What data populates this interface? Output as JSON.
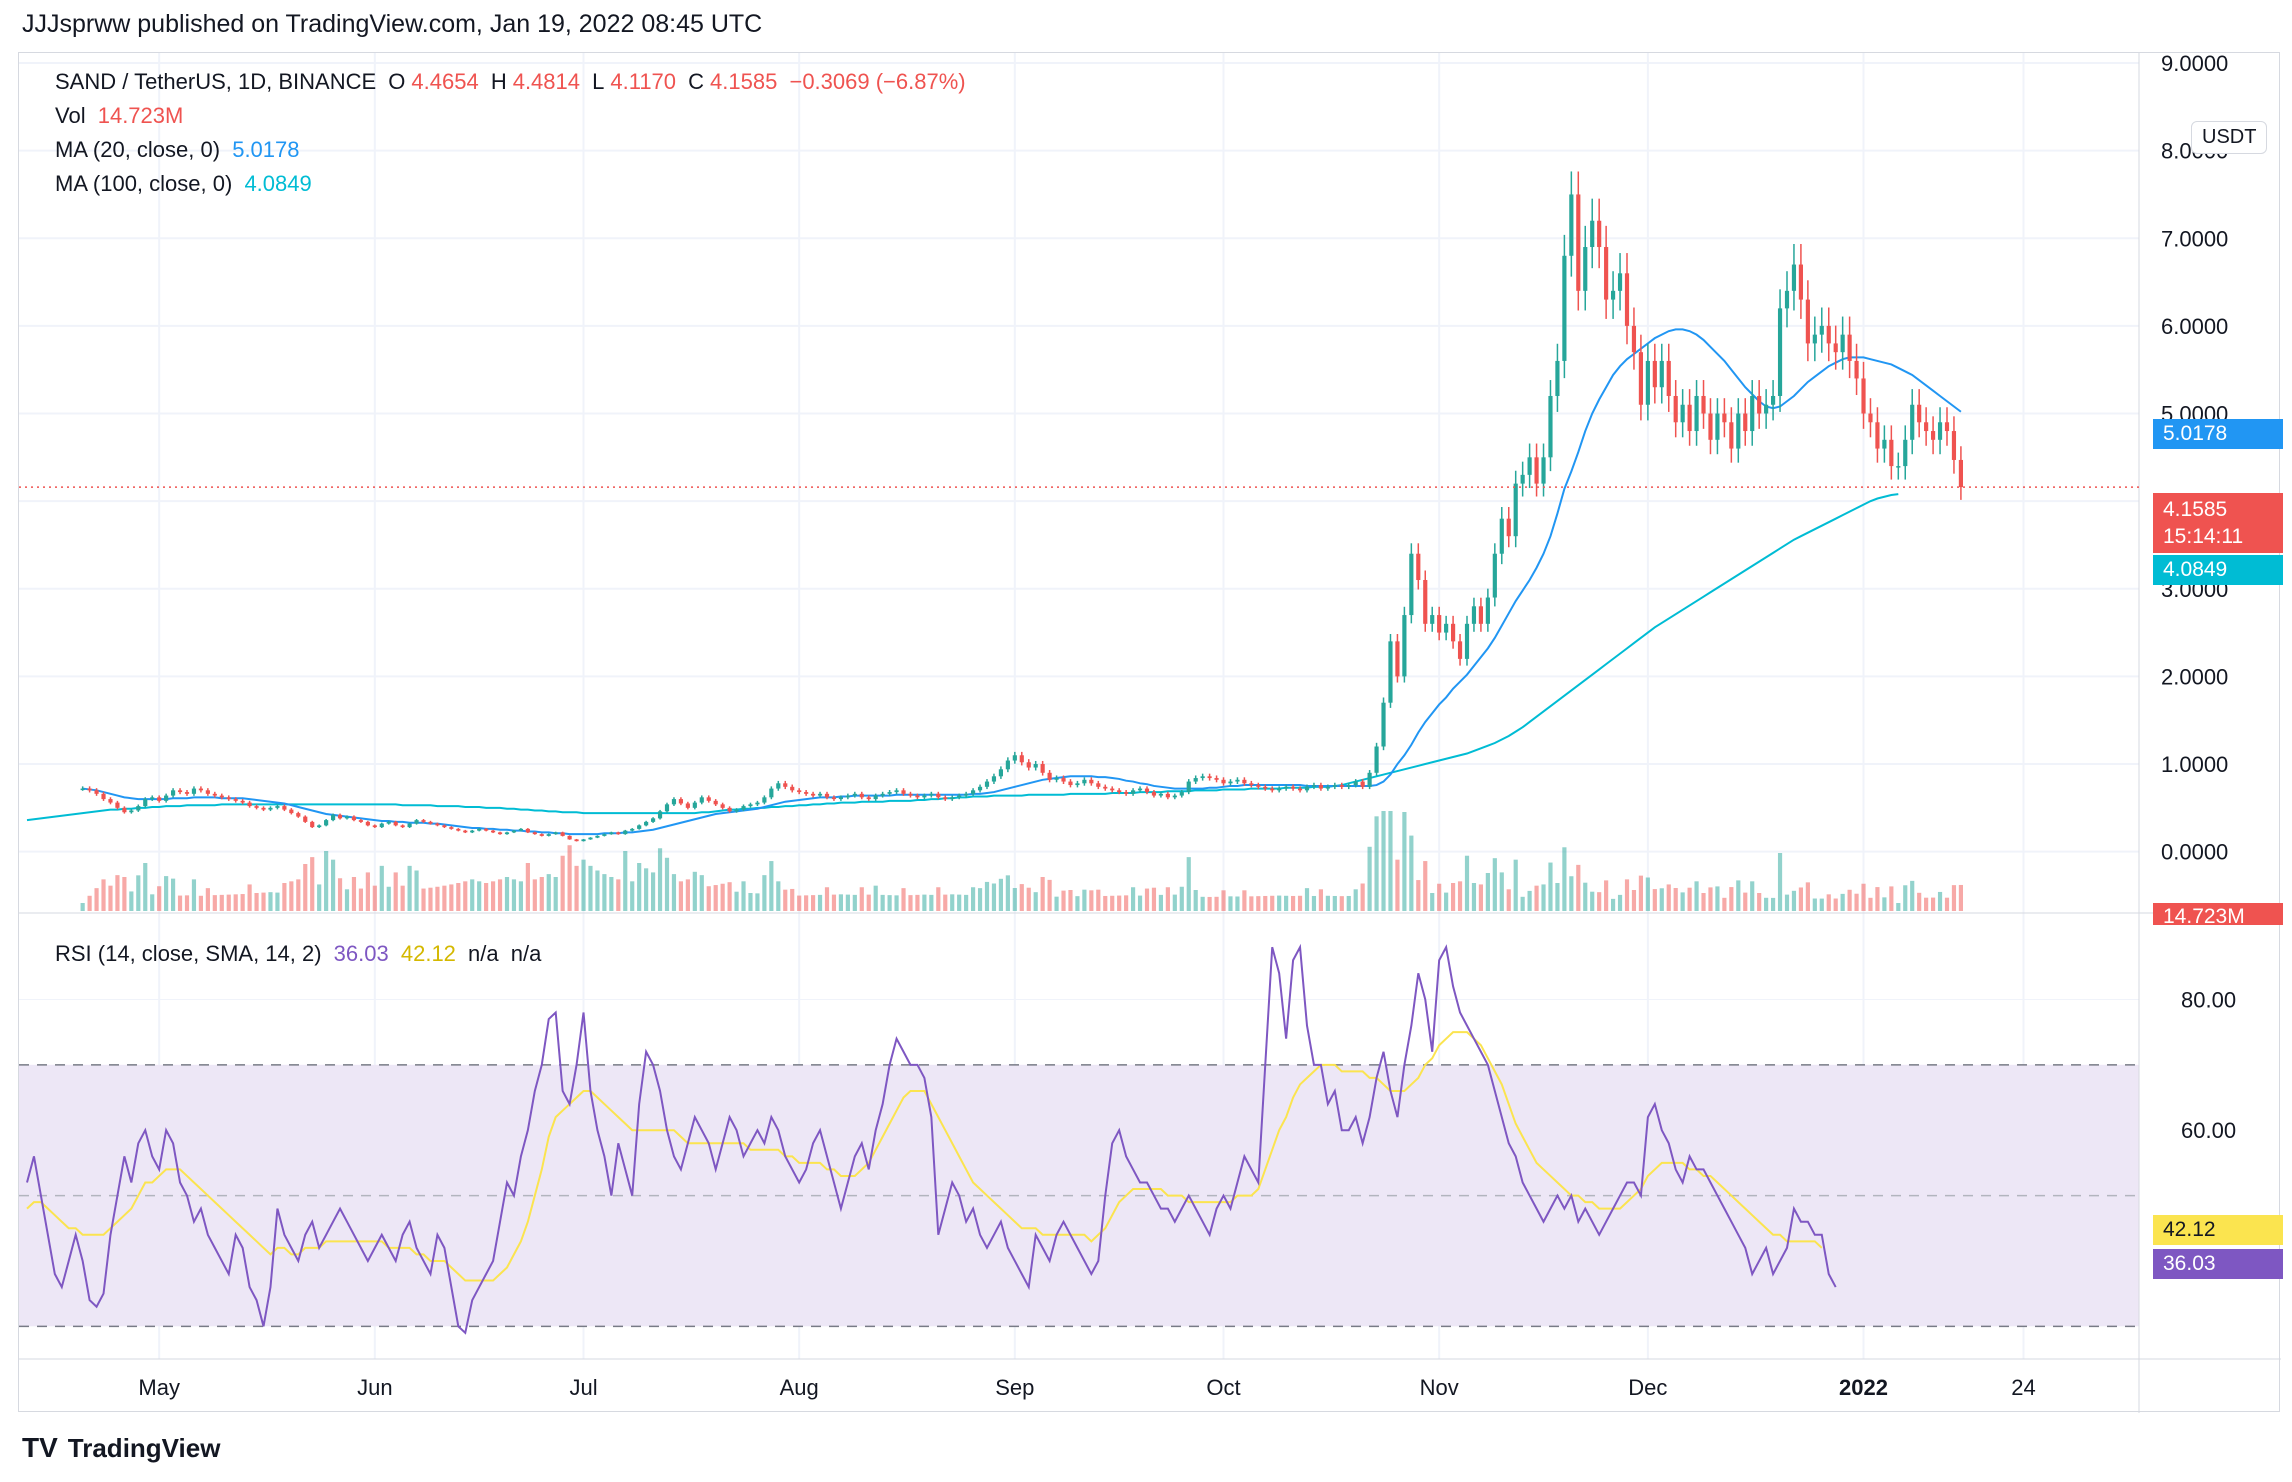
{
  "attribution": "JJJsprww published on TradingView.com, Jan 19, 2022 08:45 UTC",
  "brand": {
    "logo": "TV",
    "name": "TradingView"
  },
  "currency_badge": "USDT",
  "legend": {
    "symbol": "SAND / TetherUS, 1D, BINANCE",
    "open_label": "O",
    "open": "4.4654",
    "high_label": "H",
    "high": "4.4814",
    "low_label": "L",
    "low": "4.1170",
    "close_label": "C",
    "close": "4.1585",
    "change": "−0.3069 (−6.87%)",
    "vol_label": "Vol",
    "vol": "14.723M",
    "ma20_label": "MA (20, close, 0)",
    "ma20": "5.0178",
    "ma100_label": "MA (100, close, 0)",
    "ma100": "4.0849",
    "rsi_label": "RSI (14, close, SMA, 14, 2)",
    "rsi": "36.03",
    "rsi_ma": "42.12",
    "rsi_na1": "n/a",
    "rsi_na2": "n/a"
  },
  "price_tags": {
    "ma20": "5.0178",
    "last": "4.1585",
    "countdown": "15:14:11",
    "ma100": "4.0849",
    "vol": "14.723M",
    "rsi_ma": "42.12",
    "rsi": "36.03"
  },
  "colors": {
    "up": "#26a69a",
    "down": "#ef5350",
    "ma20": "#2196f3",
    "ma100": "#00bcd4",
    "rsi": "#7e57c2",
    "rsi_ma": "#fbe44f",
    "rsi_band": "#ede7f6",
    "grid": "#f0f3fa"
  },
  "chart_data": {
    "type": "candlestick",
    "price_axis": {
      "ticks": [
        "9.0000",
        "8.0000",
        "7.0000",
        "6.0000",
        "5.0000",
        "4.0000",
        "3.0000",
        "2.0000",
        "1.0000",
        "0.0000"
      ],
      "ylim": [
        -0.7,
        9.0
      ]
    },
    "x_ticks": [
      {
        "label": "May",
        "day": 19
      },
      {
        "label": "Jun",
        "day": 50
      },
      {
        "label": "Jul",
        "day": 80
      },
      {
        "label": "Aug",
        "day": 111
      },
      {
        "label": "Sep",
        "day": 142
      },
      {
        "label": "Oct",
        "day": 172
      },
      {
        "label": "Nov",
        "day": 203
      },
      {
        "label": "Dec",
        "day": 233
      },
      {
        "label": "2022",
        "day": 264
      },
      {
        "label": "24",
        "day": 287
      }
    ],
    "x_range": [
      0,
      299
    ],
    "close": [
      0.72,
      0.7,
      0.66,
      0.6,
      0.56,
      0.5,
      0.45,
      0.47,
      0.52,
      0.6,
      0.62,
      0.58,
      0.64,
      0.7,
      0.68,
      0.66,
      0.72,
      0.7,
      0.66,
      0.64,
      0.62,
      0.6,
      0.58,
      0.56,
      0.52,
      0.5,
      0.48,
      0.5,
      0.52,
      0.48,
      0.44,
      0.4,
      0.34,
      0.28,
      0.3,
      0.36,
      0.42,
      0.38,
      0.4,
      0.36,
      0.34,
      0.3,
      0.28,
      0.32,
      0.34,
      0.3,
      0.28,
      0.32,
      0.36,
      0.34,
      0.32,
      0.3,
      0.28,
      0.26,
      0.24,
      0.22,
      0.24,
      0.26,
      0.24,
      0.22,
      0.2,
      0.22,
      0.24,
      0.26,
      0.22,
      0.2,
      0.18,
      0.2,
      0.22,
      0.18,
      0.14,
      0.12,
      0.14,
      0.16,
      0.18,
      0.2,
      0.22,
      0.2,
      0.24,
      0.26,
      0.3,
      0.34,
      0.38,
      0.46,
      0.54,
      0.6,
      0.55,
      0.5,
      0.56,
      0.62,
      0.58,
      0.54,
      0.5,
      0.46,
      0.48,
      0.52,
      0.54,
      0.56,
      0.62,
      0.72,
      0.78,
      0.74,
      0.7,
      0.68,
      0.66,
      0.64,
      0.66,
      0.62,
      0.6,
      0.62,
      0.64,
      0.66,
      0.62,
      0.6,
      0.64,
      0.66,
      0.68,
      0.7,
      0.66,
      0.64,
      0.62,
      0.64,
      0.66,
      0.62,
      0.6,
      0.62,
      0.64,
      0.66,
      0.7,
      0.74,
      0.8,
      0.86,
      0.94,
      1.04,
      1.1,
      1.02,
      0.96,
      1.0,
      0.9,
      0.82,
      0.84,
      0.8,
      0.76,
      0.78,
      0.82,
      0.78,
      0.74,
      0.72,
      0.7,
      0.68,
      0.66,
      0.7,
      0.72,
      0.68,
      0.64,
      0.66,
      0.62,
      0.64,
      0.68,
      0.8,
      0.84,
      0.86,
      0.84,
      0.82,
      0.78,
      0.8,
      0.82,
      0.78,
      0.76,
      0.74,
      0.72,
      0.7,
      0.72,
      0.74,
      0.72,
      0.7,
      0.74,
      0.76,
      0.72,
      0.74,
      0.76,
      0.74,
      0.76,
      0.8,
      0.74,
      0.9,
      1.2,
      1.7,
      2.4,
      2.0,
      2.7,
      3.4,
      3.1,
      2.6,
      2.7,
      2.5,
      2.6,
      2.4,
      2.2,
      2.6,
      2.8,
      2.6,
      2.9,
      3.4,
      3.8,
      3.6,
      4.2,
      4.3,
      4.5,
      4.2,
      4.5,
      5.2,
      5.6,
      6.8,
      7.5,
      6.4,
      6.9,
      7.2,
      6.9,
      6.3,
      6.4,
      6.6,
      6.0,
      5.7,
      5.1,
      5.6,
      5.3,
      5.6,
      5.2,
      4.9,
      5.1,
      4.8,
      5.2,
      5.0,
      4.7,
      5.0,
      4.9,
      4.6,
      5.0,
      4.8,
      5.2,
      5.0,
      5.1,
      5.2,
      6.2,
      6.4,
      6.7,
      6.3,
      5.8,
      5.9,
      6.0,
      5.8,
      5.7,
      5.9,
      5.6,
      5.4,
      5.0,
      4.9,
      4.6,
      4.7,
      4.4,
      4.4,
      4.7,
      5.1,
      4.9,
      4.8,
      4.7,
      4.9,
      4.8,
      4.47,
      4.16
    ],
    "ma20": [
      0.72,
      0.71,
      0.7,
      0.68,
      0.66,
      0.64,
      0.62,
      0.61,
      0.6,
      0.6,
      0.6,
      0.6,
      0.6,
      0.61,
      0.61,
      0.61,
      0.62,
      0.62,
      0.62,
      0.62,
      0.61,
      0.61,
      0.61,
      0.61,
      0.6,
      0.59,
      0.58,
      0.57,
      0.56,
      0.55,
      0.53,
      0.51,
      0.49,
      0.47,
      0.45,
      0.43,
      0.42,
      0.41,
      0.4,
      0.39,
      0.38,
      0.37,
      0.36,
      0.35,
      0.35,
      0.34,
      0.34,
      0.33,
      0.33,
      0.33,
      0.32,
      0.32,
      0.31,
      0.3,
      0.29,
      0.28,
      0.27,
      0.27,
      0.26,
      0.26,
      0.25,
      0.25,
      0.24,
      0.24,
      0.23,
      0.23,
      0.22,
      0.22,
      0.21,
      0.21,
      0.2,
      0.2,
      0.2,
      0.2,
      0.2,
      0.21,
      0.21,
      0.21,
      0.22,
      0.22,
      0.23,
      0.24,
      0.25,
      0.27,
      0.29,
      0.31,
      0.33,
      0.35,
      0.37,
      0.39,
      0.41,
      0.43,
      0.44,
      0.45,
      0.46,
      0.47,
      0.48,
      0.49,
      0.51,
      0.53,
      0.55,
      0.57,
      0.58,
      0.59,
      0.6,
      0.61,
      0.62,
      0.62,
      0.62,
      0.63,
      0.63,
      0.64,
      0.64,
      0.64,
      0.64,
      0.64,
      0.64,
      0.65,
      0.65,
      0.65,
      0.65,
      0.65,
      0.65,
      0.65,
      0.65,
      0.65,
      0.65,
      0.65,
      0.66,
      0.66,
      0.67,
      0.68,
      0.7,
      0.72,
      0.74,
      0.76,
      0.78,
      0.8,
      0.82,
      0.83,
      0.84,
      0.85,
      0.86,
      0.86,
      0.86,
      0.86,
      0.85,
      0.85,
      0.84,
      0.83,
      0.81,
      0.8,
      0.78,
      0.77,
      0.75,
      0.74,
      0.73,
      0.72,
      0.72,
      0.72,
      0.72,
      0.72,
      0.73,
      0.73,
      0.74,
      0.75,
      0.75,
      0.76,
      0.76,
      0.76,
      0.76,
      0.76,
      0.76,
      0.76,
      0.76,
      0.76,
      0.75,
      0.75,
      0.75,
      0.75,
      0.75,
      0.75,
      0.75,
      0.75,
      0.75,
      0.75,
      0.76,
      0.8,
      0.88,
      1.0,
      1.1,
      1.22,
      1.36,
      1.48,
      1.58,
      1.68,
      1.76,
      1.86,
      1.94,
      2.02,
      2.12,
      2.22,
      2.32,
      2.44,
      2.58,
      2.72,
      2.86,
      2.98,
      3.1,
      3.24,
      3.4,
      3.6,
      3.86,
      4.14,
      4.34,
      4.56,
      4.8,
      5.0,
      5.16,
      5.3,
      5.44,
      5.54,
      5.62,
      5.68,
      5.74,
      5.8,
      5.86,
      5.9,
      5.94,
      5.96,
      5.96,
      5.94,
      5.9,
      5.84,
      5.76,
      5.68,
      5.6,
      5.5,
      5.4,
      5.3,
      5.22,
      5.14,
      5.08,
      5.06,
      5.08,
      5.14,
      5.2,
      5.28,
      5.36,
      5.42,
      5.48,
      5.54,
      5.58,
      5.62,
      5.64,
      5.64,
      5.64,
      5.62,
      5.6,
      5.58,
      5.56,
      5.52,
      5.48,
      5.44,
      5.38,
      5.32,
      5.26,
      5.2,
      5.14,
      5.08,
      5.02
    ],
    "ma100": [
      0.36,
      0.37,
      0.38,
      0.39,
      0.4,
      0.41,
      0.42,
      0.43,
      0.44,
      0.45,
      0.46,
      0.47,
      0.48,
      0.48,
      0.49,
      0.49,
      0.5,
      0.5,
      0.51,
      0.51,
      0.52,
      0.52,
      0.52,
      0.53,
      0.53,
      0.53,
      0.53,
      0.53,
      0.54,
      0.54,
      0.54,
      0.54,
      0.54,
      0.54,
      0.54,
      0.54,
      0.54,
      0.54,
      0.54,
      0.54,
      0.54,
      0.54,
      0.54,
      0.54,
      0.54,
      0.54,
      0.54,
      0.54,
      0.54,
      0.54,
      0.54,
      0.54,
      0.54,
      0.54,
      0.53,
      0.53,
      0.53,
      0.53,
      0.53,
      0.52,
      0.52,
      0.52,
      0.52,
      0.51,
      0.51,
      0.51,
      0.5,
      0.5,
      0.5,
      0.49,
      0.49,
      0.48,
      0.48,
      0.47,
      0.47,
      0.46,
      0.46,
      0.45,
      0.45,
      0.45,
      0.44,
      0.44,
      0.44,
      0.44,
      0.44,
      0.44,
      0.44,
      0.44,
      0.44,
      0.44,
      0.44,
      0.44,
      0.44,
      0.44,
      0.44,
      0.44,
      0.44,
      0.45,
      0.45,
      0.46,
      0.47,
      0.48,
      0.48,
      0.49,
      0.49,
      0.5,
      0.5,
      0.51,
      0.51,
      0.52,
      0.52,
      0.53,
      0.53,
      0.54,
      0.54,
      0.55,
      0.55,
      0.56,
      0.56,
      0.56,
      0.57,
      0.57,
      0.57,
      0.57,
      0.58,
      0.58,
      0.58,
      0.58,
      0.59,
      0.59,
      0.6,
      0.6,
      0.61,
      0.61,
      0.62,
      0.62,
      0.63,
      0.63,
      0.63,
      0.64,
      0.64,
      0.64,
      0.64,
      0.64,
      0.65,
      0.65,
      0.65,
      0.65,
      0.65,
      0.65,
      0.66,
      0.66,
      0.66,
      0.66,
      0.66,
      0.66,
      0.67,
      0.67,
      0.67,
      0.67,
      0.68,
      0.68,
      0.68,
      0.68,
      0.69,
      0.69,
      0.69,
      0.69,
      0.7,
      0.7,
      0.7,
      0.7,
      0.71,
      0.71,
      0.71,
      0.71,
      0.72,
      0.72,
      0.72,
      0.72,
      0.72,
      0.73,
      0.73,
      0.73,
      0.73,
      0.74,
      0.74,
      0.74,
      0.75,
      0.76,
      0.78,
      0.8,
      0.82,
      0.84,
      0.86,
      0.88,
      0.9,
      0.92,
      0.94,
      0.96,
      0.98,
      1.0,
      1.02,
      1.04,
      1.06,
      1.08,
      1.1,
      1.12,
      1.15,
      1.18,
      1.21,
      1.24,
      1.28,
      1.32,
      1.37,
      1.42,
      1.48,
      1.54,
      1.6,
      1.66,
      1.72,
      1.78,
      1.84,
      1.9,
      1.96,
      2.02,
      2.08,
      2.14,
      2.2,
      2.26,
      2.32,
      2.38,
      2.44,
      2.5,
      2.56,
      2.61,
      2.66,
      2.71,
      2.76,
      2.81,
      2.86,
      2.91,
      2.96,
      3.01,
      3.06,
      3.11,
      3.16,
      3.21,
      3.26,
      3.31,
      3.36,
      3.41,
      3.46,
      3.51,
      3.56,
      3.6,
      3.64,
      3.68,
      3.72,
      3.76,
      3.8,
      3.84,
      3.88,
      3.92,
      3.96,
      4.0,
      4.03,
      4.05,
      4.07,
      4.08
    ],
    "rsi": [
      52,
      56,
      50,
      44,
      38,
      36,
      40,
      44,
      40,
      34,
      33,
      35,
      44,
      50,
      56,
      52,
      58,
      60,
      56,
      54,
      60,
      58,
      52,
      50,
      46,
      48,
      44,
      42,
      40,
      38,
      44,
      42,
      36,
      34,
      30,
      36,
      48,
      44,
      42,
      40,
      44,
      46,
      42,
      44,
      46,
      48,
      46,
      44,
      42,
      40,
      42,
      44,
      42,
      40,
      44,
      46,
      42,
      40,
      38,
      44,
      42,
      36,
      30,
      29,
      34,
      36,
      38,
      40,
      46,
      52,
      50,
      56,
      60,
      66,
      70,
      77,
      78,
      66,
      64,
      70,
      78,
      66,
      60,
      56,
      50,
      58,
      54,
      50,
      64,
      72,
      70,
      66,
      60,
      56,
      54,
      58,
      62,
      60,
      58,
      54,
      58,
      62,
      60,
      56,
      58,
      60,
      58,
      62,
      60,
      56,
      54,
      52,
      54,
      58,
      60,
      56,
      52,
      48,
      52,
      56,
      58,
      54,
      60,
      64,
      70,
      74,
      72,
      70,
      70,
      68,
      62,
      44,
      48,
      52,
      50,
      46,
      48,
      44,
      42,
      44,
      46,
      42,
      40,
      38,
      36,
      44,
      42,
      40,
      44,
      46,
      44,
      42,
      40,
      38,
      40,
      50,
      58,
      60,
      56,
      54,
      52,
      52,
      50,
      48,
      48,
      46,
      48,
      50,
      48,
      46,
      44,
      48,
      50,
      48,
      52,
      56,
      54,
      52,
      70,
      88,
      84,
      74,
      86,
      88,
      76,
      70,
      70,
      64,
      66,
      60,
      60,
      62,
      58,
      62,
      68,
      72,
      66,
      62,
      70,
      76,
      84,
      80,
      72,
      86,
      88,
      82,
      78,
      76,
      74,
      72,
      70,
      66,
      62,
      58,
      56,
      52,
      50,
      48,
      46,
      48,
      50,
      48,
      50,
      46,
      48,
      46,
      44,
      46,
      48,
      50,
      52,
      52,
      50,
      62,
      64,
      60,
      58,
      54,
      52,
      56,
      54,
      54,
      52,
      50,
      48,
      46,
      44,
      42,
      38,
      40,
      42,
      38,
      40,
      42,
      48,
      46,
      46,
      44,
      44,
      38,
      36
    ],
    "rsi_ma": [
      48,
      49,
      49,
      48,
      47,
      46,
      45,
      45,
      44,
      44,
      44,
      44,
      45,
      46,
      47,
      48,
      50,
      52,
      52,
      53,
      54,
      54,
      54,
      53,
      52,
      51,
      50,
      49,
      48,
      47,
      46,
      45,
      44,
      43,
      42,
      41,
      42,
      42,
      41,
      41,
      42,
      42,
      42,
      43,
      43,
      43,
      43,
      43,
      43,
      43,
      43,
      43,
      42,
      42,
      42,
      42,
      41,
      41,
      40,
      40,
      40,
      39,
      38,
      37,
      37,
      37,
      37,
      37,
      38,
      39,
      41,
      43,
      46,
      50,
      54,
      59,
      62,
      63,
      64,
      65,
      66,
      66,
      65,
      64,
      63,
      62,
      61,
      60,
      60,
      60,
      60,
      60,
      60,
      60,
      59,
      58,
      58,
      58,
      58,
      58,
      58,
      58,
      58,
      58,
      57,
      57,
      57,
      57,
      57,
      56,
      56,
      55,
      55,
      55,
      55,
      54,
      54,
      53,
      53,
      53,
      54,
      55,
      57,
      59,
      61,
      63,
      65,
      66,
      66,
      66,
      64,
      62,
      60,
      58,
      56,
      54,
      52,
      51,
      50,
      49,
      48,
      47,
      46,
      45,
      45,
      45,
      44,
      44,
      44,
      44,
      44,
      44,
      44,
      43,
      44,
      45,
      47,
      49,
      50,
      51,
      51,
      51,
      51,
      51,
      50,
      50,
      50,
      49,
      49,
      49,
      49,
      49,
      49,
      49,
      50,
      50,
      50,
      51,
      54,
      57,
      60,
      62,
      65,
      67,
      68,
      69,
      70,
      70,
      70,
      69,
      69,
      69,
      69,
      68,
      68,
      67,
      66,
      66,
      66,
      67,
      68,
      70,
      71,
      73,
      74,
      75,
      75,
      75,
      74,
      73,
      71,
      69,
      67,
      64,
      61,
      59,
      57,
      55,
      54,
      53,
      52,
      51,
      50,
      50,
      49,
      49,
      48,
      48,
      48,
      48,
      49,
      50,
      51,
      53,
      54,
      55,
      55,
      55,
      55,
      54,
      54,
      53,
      53,
      52,
      51,
      50,
      49,
      48,
      47,
      46,
      45,
      44,
      44,
      43,
      43,
      43,
      43,
      43,
      42
    ],
    "rsi_axis": {
      "ticks": [
        "80.00",
        "60.00"
      ],
      "ylim": [
        25,
        92
      ],
      "bands": [
        30,
        50,
        70
      ]
    }
  }
}
